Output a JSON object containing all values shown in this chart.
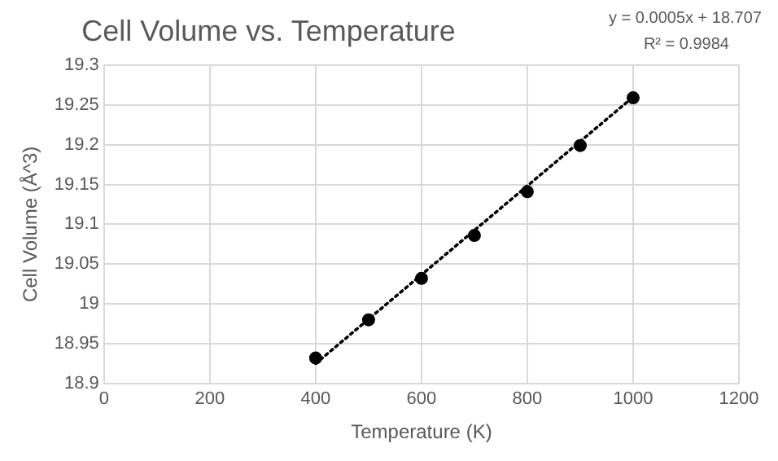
{
  "chart_data": {
    "type": "scatter",
    "title": "Cell Volume vs. Temperature",
    "xlabel": "Temperature (K)",
    "ylabel": "Cell Volume (Å^3)",
    "annotations": [
      "y = 0.0005x + 18.707",
      "R² = 0.9984"
    ],
    "series": [
      {
        "color": "#000000",
        "marker": "circle",
        "x": [
          400,
          500,
          600,
          700,
          800,
          900,
          1000
        ],
        "values": [
          18.932,
          18.98,
          19.032,
          19.086,
          19.141,
          19.199,
          19.259
        ]
      },
      {
        "type": "line",
        "color": "#000000",
        "line_style": "dotted",
        "marker": "none",
        "x": [
          400,
          1000
        ],
        "values": [
          18.925,
          19.26
        ]
      }
    ],
    "xlim": [
      0,
      1200
    ],
    "xticks": [
      0,
      200,
      400,
      600,
      800,
      1000,
      1200
    ],
    "ylim": [
      18.9,
      19.3
    ],
    "yticks": [
      18.9,
      18.95,
      19,
      19.05,
      19.1,
      19.15,
      19.2,
      19.25,
      19.3
    ],
    "grid": true
  }
}
